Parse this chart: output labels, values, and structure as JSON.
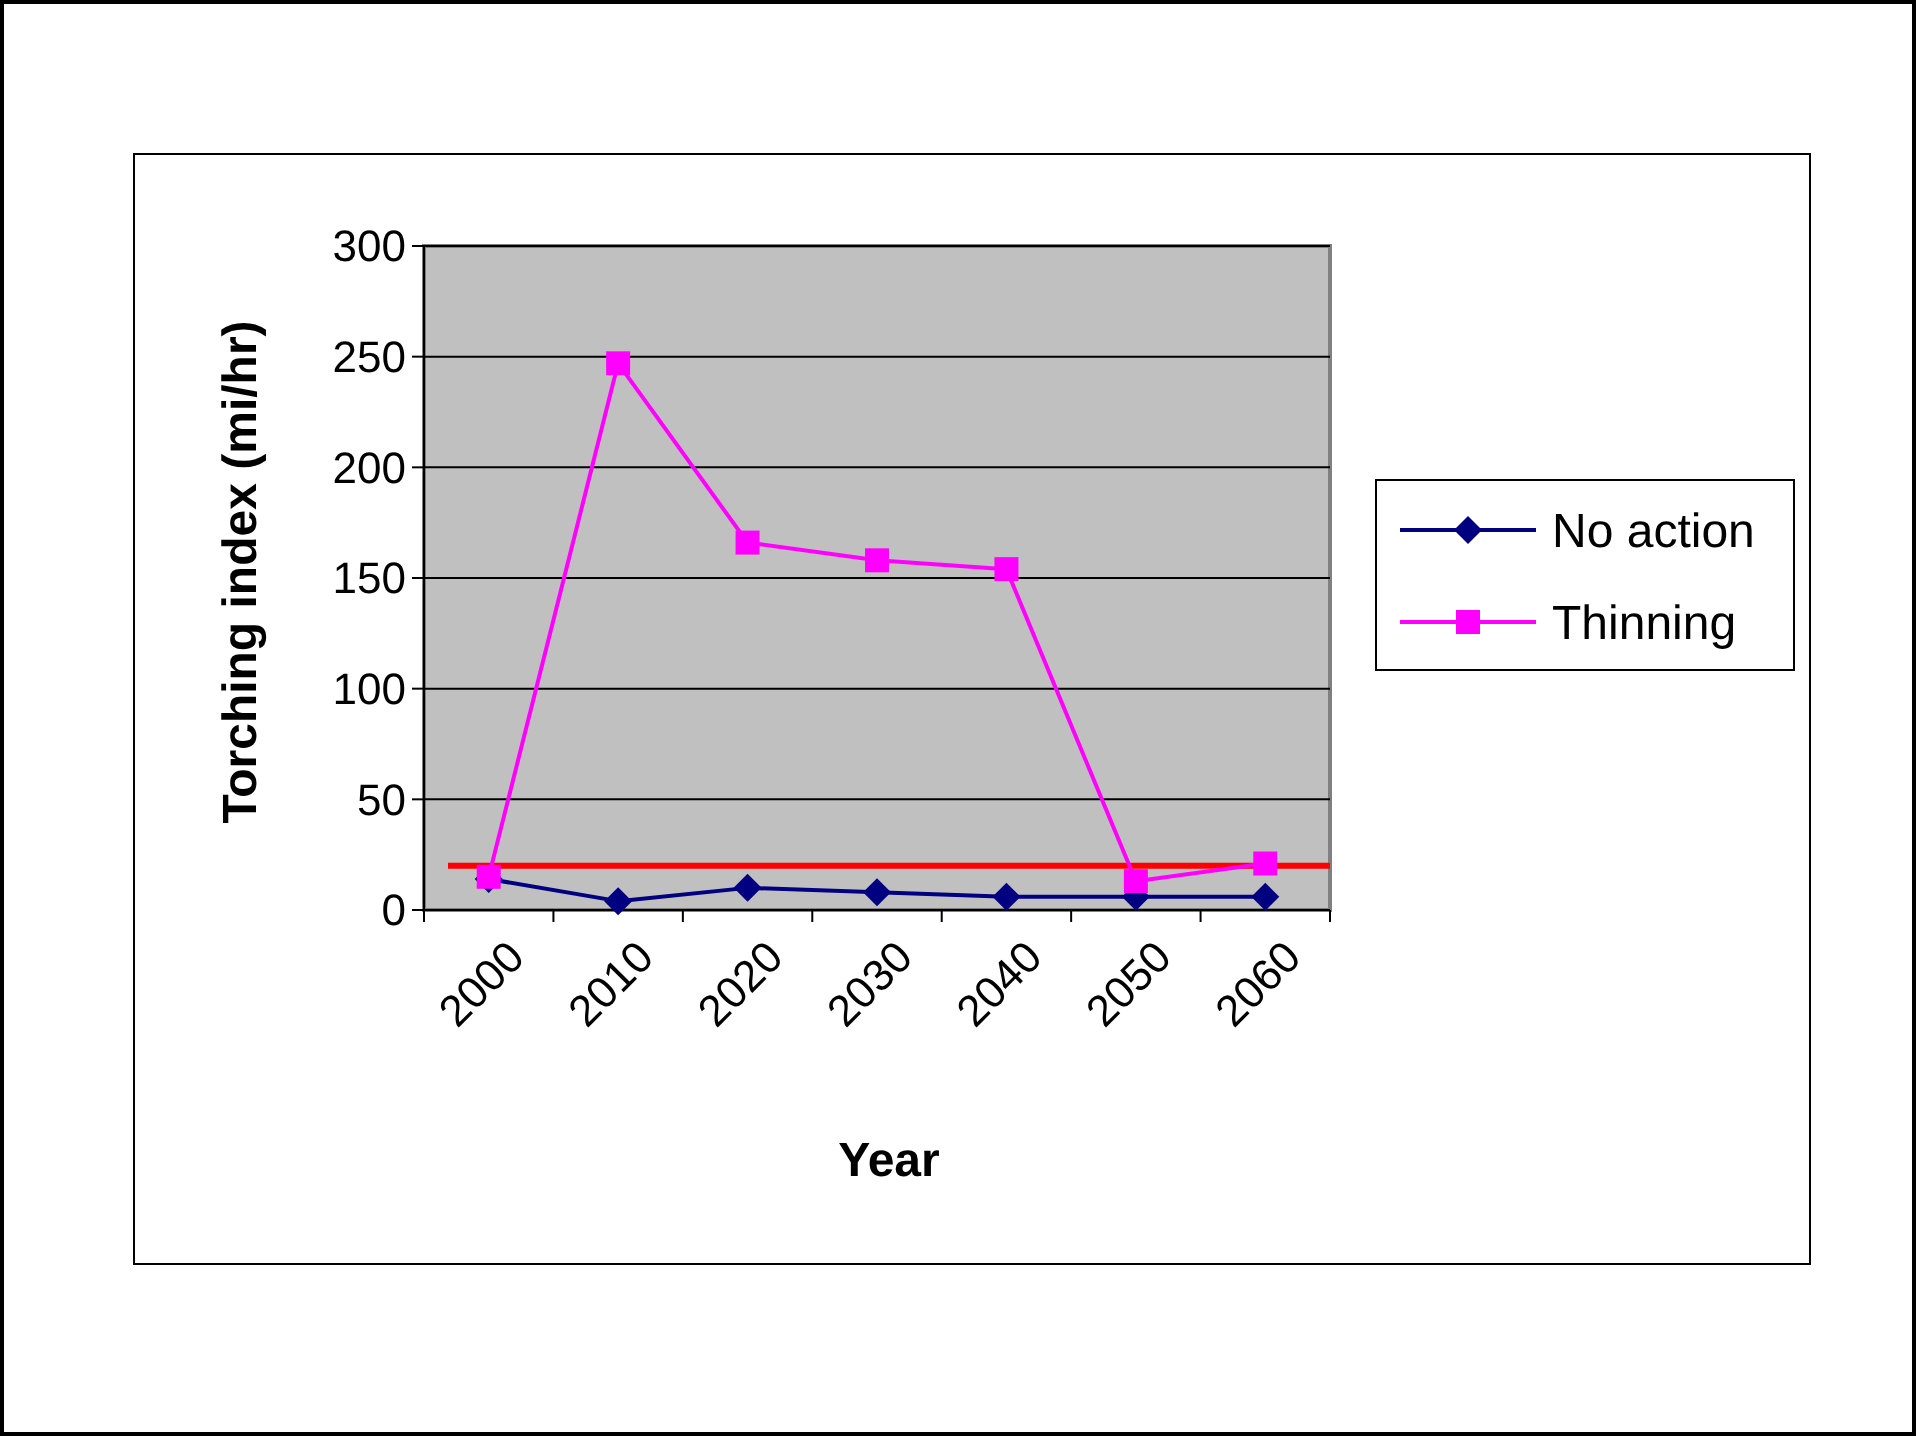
{
  "chart_data": {
    "type": "line",
    "xlabel": "Year",
    "ylabel": "Torching index (mi/hr)",
    "categories": [
      "2000",
      "2010",
      "2020",
      "2030",
      "2040",
      "2050",
      "2060"
    ],
    "series": [
      {
        "name": "No action",
        "color": "#000080",
        "marker": "diamond",
        "values": [
          14,
          4,
          10,
          8,
          6,
          6,
          6
        ]
      },
      {
        "name": "Thinning",
        "color": "#ff00ff",
        "marker": "square",
        "values": [
          15,
          247,
          166,
          158,
          154,
          13,
          21
        ]
      }
    ],
    "ylim": [
      0,
      300
    ],
    "yticks": [
      0,
      50,
      100,
      150,
      200,
      250,
      300
    ],
    "grid": "y",
    "legend": "right",
    "ref_lines": [
      {
        "axis": "y",
        "value": 20,
        "color": "#ff0000"
      }
    ]
  }
}
